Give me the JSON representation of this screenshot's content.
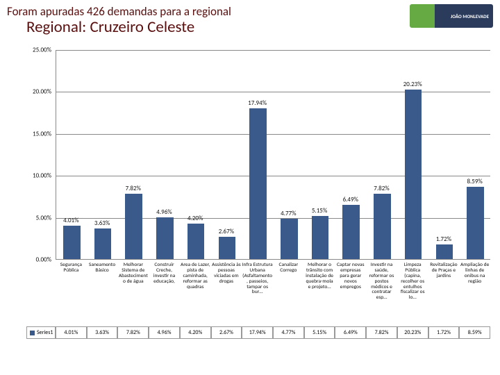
{
  "header": {
    "title": "Foram apuradas 426 demandas para a regional",
    "subtitle": "Regional: Cruzeiro Celeste",
    "logo_text": "JOÃO MONLEVADE"
  },
  "chart": {
    "type": "bar",
    "ylim": [
      0,
      25
    ],
    "ytick_step": 5,
    "yticks": [
      "0.00%",
      "5.00%",
      "10.00%",
      "15.00%",
      "20.00%",
      "25.00%"
    ],
    "bar_color": "#395a8a",
    "grid_color": "#888888",
    "background_color": "#ffffff",
    "label_fontsize": 9,
    "categories": [
      "Segurança Pública",
      "Saneamento Básico",
      "Melhorar Sistema de Abastecimento de água",
      "Construir Creche, investir na educação,",
      "Area de Lazer, pista de caminhada, reformar as quadras",
      "Assistência às pessoas viciadas em drogas",
      "Infra Estrutura Urbana (Asfaltamento, passeios, tampar os bur…",
      "Canalizar Corrego",
      "Melhorar o trânsito com instalação de quebra-mola e projeto…",
      "Captar novas empresas para gerar novos empregos",
      "Investir na saúde, reformar os postos médicos e contratar esp…",
      "Limpeza Pública (capina, recolher os entulhos fiscalizar os lo…",
      "Revitalização de Praças e jardins",
      "Ampliação de linhas de onibus na região"
    ],
    "values": [
      4.01,
      3.63,
      7.82,
      4.96,
      4.2,
      2.67,
      17.94,
      4.77,
      5.15,
      6.49,
      7.82,
      20.23,
      1.72,
      8.59
    ],
    "data_labels": [
      "4.01%",
      "3.63%",
      "7.82%",
      "4.96%",
      "4.20%",
      "2.67%",
      "17.94%",
      "4.77%",
      "5.15%",
      "6.49%",
      "7.82%",
      "20.23%",
      "1.72%",
      "8.59%"
    ]
  },
  "table": {
    "series_label": "Series1",
    "row": [
      "4.01%",
      "3.63%",
      "7.82%",
      "4.96%",
      "4.20%",
      "2.67%",
      "17.94%",
      "4.77%",
      "5.15%",
      "6.49%",
      "7.82%",
      "20.23%",
      "1.72%",
      "8.59%"
    ]
  }
}
